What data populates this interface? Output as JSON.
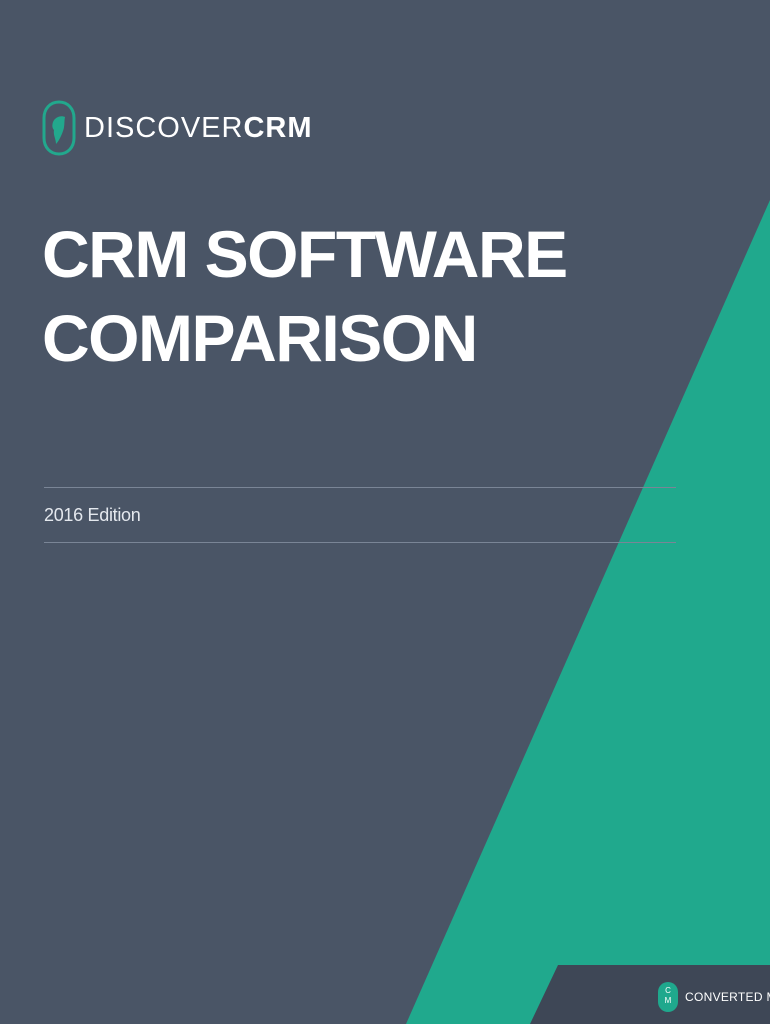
{
  "brand": {
    "name_light": "DISCOVER",
    "name_bold": "CRM",
    "icon": "map-pin-icon"
  },
  "cover": {
    "title_line1": "CRM SOFTWARE",
    "title_line2": "COMPARISON",
    "edition": "2016 Edition"
  },
  "footer": {
    "badge_top": "C",
    "badge_bottom": "M",
    "company": "CONVERTED MEDIA"
  },
  "colors": {
    "background": "#4a5566",
    "accent": "#1fa88d",
    "footer_band": "#3d4654",
    "text": "#ffffff"
  }
}
